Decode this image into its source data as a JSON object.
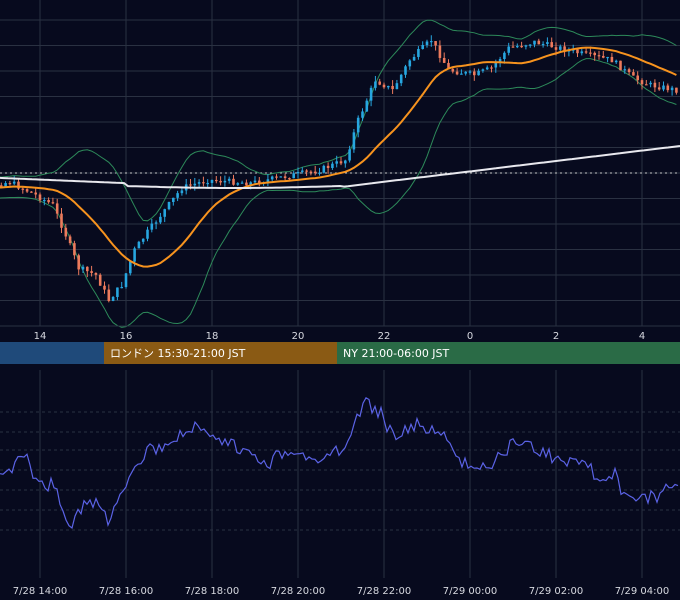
{
  "colors": {
    "background": "#070a1e",
    "grid": "#2a3142",
    "up_candle": "#27a6e0",
    "down_candle": "#ec7a5c",
    "bollinger": "#2d8a5a",
    "ma_short": "#f7931e",
    "ma_long": "#e8e8ee",
    "reference_line": "#c9c9c9",
    "indicator_line": "#5b63e6",
    "session_tokyo": "#1f4a7a",
    "session_london": "#8a5a14",
    "session_ny": "#2a6b46"
  },
  "chart_data": [
    {
      "type": "candlestick",
      "title": "",
      "x_ticks": [
        "14",
        "16",
        "18",
        "20",
        "22",
        "0",
        "2",
        "4"
      ],
      "overlays": [
        "bollinger_bands",
        "moving_average_orange",
        "moving_average_white"
      ],
      "key_points": [
        {
          "x": "12",
          "y": "mid"
        },
        {
          "x": "15:00",
          "y": "low"
        },
        {
          "x": "15:30",
          "y": "lowest"
        },
        {
          "x": "17:30",
          "y": "mid"
        },
        {
          "x": "21:00",
          "y": "mid"
        },
        {
          "x": "21:30",
          "y": "rally"
        },
        {
          "x": "23:00",
          "y": "high"
        },
        {
          "x": "1:00",
          "y": "high"
        },
        {
          "x": "4:30",
          "y": "pullback"
        }
      ],
      "grid": true
    },
    {
      "type": "line",
      "title": "",
      "x_ticks": [
        "7/28 14:00",
        "7/28 16:00",
        "7/28 18:00",
        "7/28 20:00",
        "7/28 22:00",
        "7/29 00:00",
        "7/29 02:00",
        "7/29 04:00"
      ],
      "grid": true
    }
  ],
  "sessions": [
    {
      "label": ""
    },
    {
      "label": "ロンドン 15:30-21:00 JST"
    },
    {
      "label": "NY 21:00-06:00 JST"
    }
  ]
}
